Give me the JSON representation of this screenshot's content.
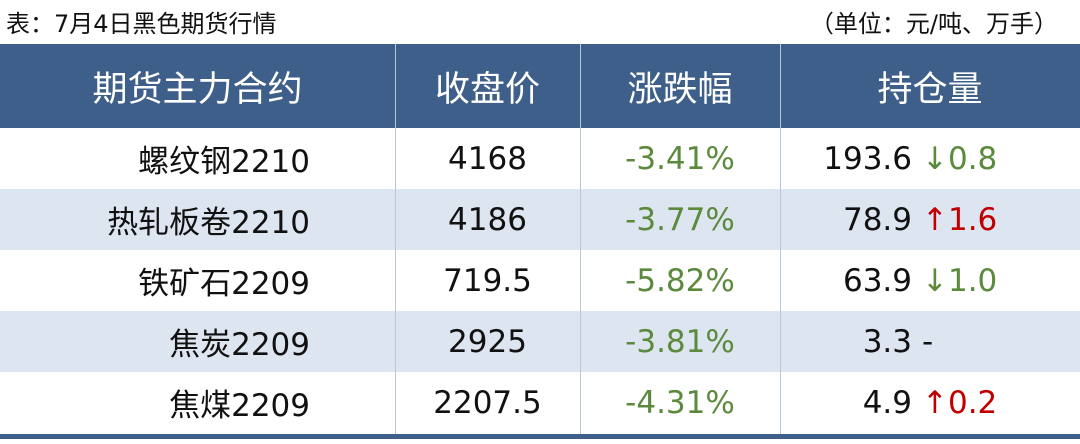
{
  "caption": {
    "title": "表：7月4日黑色期货行情",
    "unit": "（单位：元/吨、万手）"
  },
  "table": {
    "headers": [
      "期货主力合约",
      "收盘价",
      "涨跌幅",
      "持仓量"
    ],
    "rows": [
      [
        "螺纹钢2210",
        "4168",
        "-3.41%",
        "193.6",
        "↓0.8"
      ],
      [
        "热轧板卷2210",
        "4186",
        "-3.77%",
        "78.9",
        "↑1.6"
      ],
      [
        "铁矿石2209",
        "719.5",
        "-5.82%",
        "63.9",
        "↓1.0"
      ],
      [
        "焦炭2209",
        "2925",
        "-3.81%",
        "3.3",
        "-"
      ],
      [
        "焦煤2209",
        "2207.5",
        "-4.31%",
        "4.9",
        "↑0.2"
      ]
    ],
    "change_color": "#5b8a3c",
    "oi_change_colors": [
      "#5b8a3c",
      "#c00000",
      "#5b8a3c",
      "#111111",
      "#c00000"
    ],
    "header_color": "#3e5f8a",
    "stripe_color": "#dde5f0"
  }
}
